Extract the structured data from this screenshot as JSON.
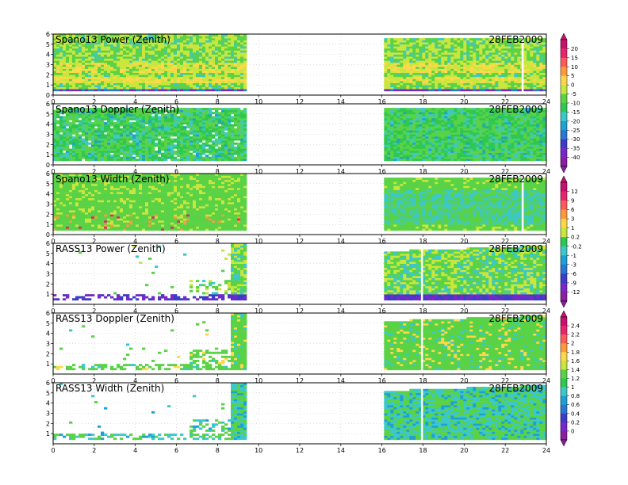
{
  "figure": {
    "date_label": "28FEB2009"
  },
  "chart_data": [
    {
      "type": "heatmap",
      "title": "Spano13 Power (Zenith)",
      "date": "28FEB2009",
      "xlim": [
        0,
        24
      ],
      "xticks": [
        "0",
        "2",
        "4",
        "6",
        "8",
        "10",
        "12",
        "14",
        "16",
        "18",
        "20",
        "22",
        "24"
      ],
      "ylim": [
        0,
        6
      ],
      "yticks": [
        "0",
        "1",
        "2",
        "3",
        "4",
        "5",
        "6"
      ],
      "data_hours": [
        [
          0,
          9.4
        ],
        [
          16.1,
          24
        ]
      ],
      "colorbar": [
        "20",
        "15",
        "10",
        "5",
        "0",
        "-5",
        "-10",
        "-15",
        "-20",
        "-25",
        "-30",
        "-35",
        "-40"
      ]
    },
    {
      "type": "heatmap",
      "title": "Spano13 Doppler (Zenith)",
      "date": "28FEB2009",
      "xlim": [
        0,
        24
      ],
      "xticks": [
        "0",
        "2",
        "4",
        "6",
        "8",
        "10",
        "12",
        "14",
        "16",
        "18",
        "20",
        "22",
        "24"
      ],
      "ylim": [
        0,
        6
      ],
      "yticks": [
        "0",
        "1",
        "2",
        "3",
        "4",
        "5",
        "6"
      ],
      "data_hours": [
        [
          0,
          9.4
        ],
        [
          16.1,
          24
        ]
      ]
    },
    {
      "type": "heatmap",
      "title": "Spano13 Width (Zenith)",
      "date": "28FEB2009",
      "xlim": [
        0,
        24
      ],
      "xticks": [
        "0",
        "2",
        "4",
        "6",
        "8",
        "10",
        "12",
        "14",
        "16",
        "18",
        "20",
        "22",
        "24"
      ],
      "ylim": [
        0,
        6
      ],
      "yticks": [
        "0",
        "1",
        "2",
        "3",
        "4",
        "5",
        "6"
      ],
      "data_hours": [
        [
          0,
          9.4
        ],
        [
          16.1,
          24
        ]
      ],
      "colorbar": [
        "12",
        "9",
        "6",
        "3",
        "1",
        "0.2",
        "-0.2",
        "-1",
        "-3",
        "-6",
        "-9",
        "-12"
      ]
    },
    {
      "type": "heatmap",
      "title": "RASS13 Power (Zenith)",
      "date": "28FEB2009",
      "xlim": [
        0,
        24
      ],
      "xticks": [
        "0",
        "2",
        "4",
        "6",
        "8",
        "10",
        "12",
        "14",
        "16",
        "18",
        "20",
        "22",
        "24"
      ],
      "ylim": [
        0,
        6
      ],
      "yticks": [
        "1",
        "2",
        "3",
        "4",
        "5",
        "6"
      ],
      "data_hours": [
        [
          0,
          9.4
        ],
        [
          16.1,
          24
        ]
      ]
    },
    {
      "type": "heatmap",
      "title": "RASS13 Doppler (Zenith)",
      "date": "28FEB2009",
      "xlim": [
        0,
        24
      ],
      "xticks": [
        "0",
        "2",
        "4",
        "6",
        "8",
        "10",
        "12",
        "14",
        "16",
        "18",
        "20",
        "22",
        "24"
      ],
      "ylim": [
        0,
        6
      ],
      "yticks": [
        "1",
        "2",
        "3",
        "4",
        "5",
        "6"
      ],
      "data_hours": [
        [
          0,
          9.4
        ],
        [
          16.1,
          24
        ]
      ],
      "colorbar": [
        "2.4",
        "2.2",
        "2",
        "1.8",
        "1.6",
        "1.4",
        "1.2",
        "1",
        "0.8",
        "0.6",
        "0.4",
        "0.2",
        "0"
      ]
    },
    {
      "type": "heatmap",
      "title": "RASS13 Width (Zenith)",
      "date": "28FEB2009",
      "xlim": [
        0,
        24
      ],
      "xticks": [
        "0",
        "2",
        "4",
        "6",
        "8",
        "10",
        "12",
        "14",
        "16",
        "18",
        "20",
        "22",
        "24"
      ],
      "ylim": [
        0,
        6
      ],
      "yticks": [
        "1",
        "2",
        "3",
        "4",
        "5",
        "6"
      ],
      "data_hours": [
        [
          0,
          9.4
        ],
        [
          16.1,
          24
        ]
      ]
    }
  ]
}
